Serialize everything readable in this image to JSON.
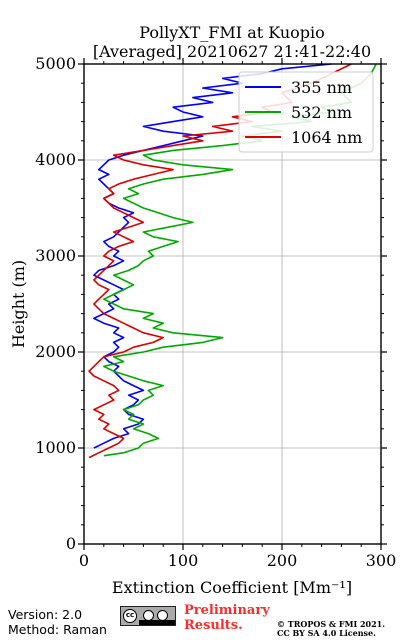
{
  "chart_data": {
    "type": "line",
    "title": "PollyXT_FMI at Kuopio",
    "subtitle": "[Averaged] 20210627 21:41-22:40",
    "xlabel": "Extinction Coefficient [Mm⁻¹]",
    "ylabel": "Height (m)",
    "xlim": [
      0,
      300
    ],
    "ylim": [
      0,
      5000
    ],
    "xticks": [
      0,
      100,
      200,
      300
    ],
    "yticks": [
      0,
      1000,
      2000,
      3000,
      4000,
      5000
    ],
    "grid": true,
    "legend_position": "top-right",
    "series": [
      {
        "name": "355 nm",
        "color": "#0000ff",
        "points": [
          [
            10,
            1000
          ],
          [
            20,
            1050
          ],
          [
            30,
            1100
          ],
          [
            45,
            1150
          ],
          [
            40,
            1200
          ],
          [
            55,
            1250
          ],
          [
            60,
            1300
          ],
          [
            45,
            1350
          ],
          [
            40,
            1400
          ],
          [
            50,
            1450
          ],
          [
            55,
            1500
          ],
          [
            45,
            1550
          ],
          [
            60,
            1600
          ],
          [
            50,
            1650
          ],
          [
            40,
            1700
          ],
          [
            35,
            1750
          ],
          [
            30,
            1800
          ],
          [
            35,
            1850
          ],
          [
            25,
            1900
          ],
          [
            20,
            1950
          ],
          [
            30,
            2000
          ],
          [
            35,
            2050
          ],
          [
            30,
            2100
          ],
          [
            40,
            2150
          ],
          [
            30,
            2200
          ],
          [
            35,
            2250
          ],
          [
            20,
            2300
          ],
          [
            10,
            2350
          ],
          [
            20,
            2400
          ],
          [
            30,
            2450
          ],
          [
            25,
            2500
          ],
          [
            35,
            2550
          ],
          [
            30,
            2600
          ],
          [
            40,
            2650
          ],
          [
            30,
            2700
          ],
          [
            20,
            2750
          ],
          [
            10,
            2800
          ],
          [
            15,
            2850
          ],
          [
            30,
            2900
          ],
          [
            40,
            2950
          ],
          [
            30,
            3000
          ],
          [
            35,
            3050
          ],
          [
            25,
            3100
          ],
          [
            20,
            3150
          ],
          [
            30,
            3200
          ],
          [
            35,
            3250
          ],
          [
            40,
            3300
          ],
          [
            45,
            3350
          ],
          [
            40,
            3400
          ],
          [
            50,
            3450
          ],
          [
            35,
            3500
          ],
          [
            25,
            3550
          ],
          [
            20,
            3600
          ],
          [
            30,
            3650
          ],
          [
            25,
            3700
          ],
          [
            20,
            3750
          ],
          [
            15,
            3800
          ],
          [
            25,
            3850
          ],
          [
            15,
            3900
          ],
          [
            20,
            3950
          ],
          [
            25,
            4000
          ],
          [
            40,
            4050
          ],
          [
            60,
            4100
          ],
          [
            80,
            4150
          ],
          [
            100,
            4200
          ],
          [
            120,
            4250
          ],
          [
            80,
            4300
          ],
          [
            60,
            4350
          ],
          [
            90,
            4400
          ],
          [
            120,
            4450
          ],
          [
            100,
            4500
          ],
          [
            90,
            4550
          ],
          [
            130,
            4600
          ],
          [
            110,
            4650
          ],
          [
            150,
            4700
          ],
          [
            120,
            4750
          ],
          [
            160,
            4800
          ],
          [
            140,
            4850
          ],
          [
            180,
            4900
          ],
          [
            200,
            4950
          ],
          [
            250,
            5000
          ]
        ]
      },
      {
        "name": "532 nm",
        "color": "#00aa00",
        "points": [
          [
            20,
            920
          ],
          [
            40,
            950
          ],
          [
            55,
            1000
          ],
          [
            60,
            1050
          ],
          [
            75,
            1100
          ],
          [
            65,
            1150
          ],
          [
            50,
            1200
          ],
          [
            60,
            1250
          ],
          [
            45,
            1300
          ],
          [
            50,
            1350
          ],
          [
            40,
            1400
          ],
          [
            55,
            1450
          ],
          [
            60,
            1500
          ],
          [
            70,
            1550
          ],
          [
            65,
            1600
          ],
          [
            80,
            1650
          ],
          [
            60,
            1700
          ],
          [
            45,
            1750
          ],
          [
            30,
            1800
          ],
          [
            20,
            1850
          ],
          [
            40,
            1900
          ],
          [
            30,
            1950
          ],
          [
            60,
            2000
          ],
          [
            80,
            2050
          ],
          [
            120,
            2100
          ],
          [
            140,
            2150
          ],
          [
            90,
            2200
          ],
          [
            70,
            2250
          ],
          [
            80,
            2300
          ],
          [
            60,
            2350
          ],
          [
            70,
            2400
          ],
          [
            40,
            2450
          ],
          [
            30,
            2500
          ],
          [
            20,
            2550
          ],
          [
            30,
            2600
          ],
          [
            40,
            2650
          ],
          [
            50,
            2700
          ],
          [
            40,
            2750
          ],
          [
            30,
            2800
          ],
          [
            45,
            2850
          ],
          [
            55,
            2900
          ],
          [
            60,
            2950
          ],
          [
            70,
            3000
          ],
          [
            65,
            3050
          ],
          [
            80,
            3100
          ],
          [
            95,
            3150
          ],
          [
            70,
            3200
          ],
          [
            60,
            3250
          ],
          [
            85,
            3300
          ],
          [
            110,
            3350
          ],
          [
            90,
            3400
          ],
          [
            75,
            3450
          ],
          [
            60,
            3500
          ],
          [
            50,
            3550
          ],
          [
            40,
            3600
          ],
          [
            55,
            3650
          ],
          [
            45,
            3700
          ],
          [
            60,
            3750
          ],
          [
            80,
            3800
          ],
          [
            120,
            3850
          ],
          [
            150,
            3900
          ],
          [
            100,
            3950
          ],
          [
            70,
            4000
          ],
          [
            60,
            4050
          ],
          [
            90,
            4100
          ],
          [
            140,
            4150
          ],
          [
            180,
            4200
          ],
          [
            160,
            4250
          ],
          [
            200,
            4300
          ],
          [
            170,
            4350
          ],
          [
            230,
            4400
          ],
          [
            210,
            4450
          ],
          [
            250,
            4500
          ],
          [
            240,
            4550
          ],
          [
            270,
            4600
          ],
          [
            260,
            4700
          ],
          [
            280,
            4800
          ],
          [
            290,
            4900
          ],
          [
            295,
            5000
          ]
        ]
      },
      {
        "name": "1064 nm",
        "color": "#dd0000",
        "points": [
          [
            5,
            900
          ],
          [
            15,
            950
          ],
          [
            25,
            1000
          ],
          [
            35,
            1050
          ],
          [
            40,
            1100
          ],
          [
            30,
            1150
          ],
          [
            20,
            1200
          ],
          [
            25,
            1250
          ],
          [
            15,
            1300
          ],
          [
            20,
            1350
          ],
          [
            10,
            1400
          ],
          [
            20,
            1450
          ],
          [
            30,
            1500
          ],
          [
            25,
            1550
          ],
          [
            35,
            1600
          ],
          [
            30,
            1650
          ],
          [
            20,
            1700
          ],
          [
            10,
            1750
          ],
          [
            5,
            1800
          ],
          [
            10,
            1850
          ],
          [
            15,
            1900
          ],
          [
            20,
            1950
          ],
          [
            40,
            2000
          ],
          [
            50,
            2050
          ],
          [
            70,
            2100
          ],
          [
            80,
            2150
          ],
          [
            60,
            2200
          ],
          [
            50,
            2250
          ],
          [
            40,
            2300
          ],
          [
            30,
            2350
          ],
          [
            20,
            2400
          ],
          [
            15,
            2450
          ],
          [
            10,
            2500
          ],
          [
            15,
            2550
          ],
          [
            20,
            2600
          ],
          [
            25,
            2650
          ],
          [
            15,
            2700
          ],
          [
            10,
            2750
          ],
          [
            15,
            2800
          ],
          [
            20,
            2850
          ],
          [
            25,
            2900
          ],
          [
            30,
            2950
          ],
          [
            20,
            3000
          ],
          [
            25,
            3050
          ],
          [
            35,
            3100
          ],
          [
            50,
            3150
          ],
          [
            40,
            3200
          ],
          [
            30,
            3250
          ],
          [
            45,
            3300
          ],
          [
            60,
            3350
          ],
          [
            50,
            3400
          ],
          [
            40,
            3450
          ],
          [
            30,
            3500
          ],
          [
            25,
            3550
          ],
          [
            20,
            3600
          ],
          [
            30,
            3650
          ],
          [
            25,
            3700
          ],
          [
            35,
            3750
          ],
          [
            50,
            3800
          ],
          [
            70,
            3850
          ],
          [
            90,
            3900
          ],
          [
            60,
            3950
          ],
          [
            40,
            4000
          ],
          [
            30,
            4050
          ],
          [
            60,
            4100
          ],
          [
            90,
            4150
          ],
          [
            120,
            4200
          ],
          [
            100,
            4250
          ],
          [
            150,
            4300
          ],
          [
            130,
            4350
          ],
          [
            170,
            4400
          ],
          [
            150,
            4450
          ],
          [
            190,
            4500
          ],
          [
            180,
            4550
          ],
          [
            210,
            4600
          ],
          [
            200,
            4700
          ],
          [
            230,
            4800
          ],
          [
            250,
            4900
          ],
          [
            270,
            5000
          ]
        ]
      }
    ]
  },
  "footer": {
    "version": "Version: 2.0",
    "method": "Method: Raman",
    "preliminary_line1": "Preliminary",
    "preliminary_line2": "Results.",
    "copyright_line1": "© TROPOS & FMI 2021.",
    "copyright_line2": "CC BY SA 4.0 License.",
    "cc_mark": "cc"
  }
}
